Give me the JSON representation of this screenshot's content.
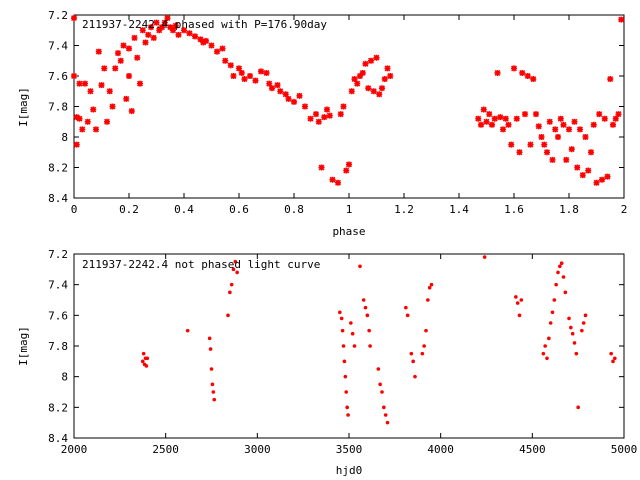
{
  "chart_data": [
    {
      "type": "scatter",
      "title": "211937-2242.4 phased with P=176.90day",
      "xlabel": "phase",
      "ylabel": "I[mag]",
      "xlim": [
        0,
        2
      ],
      "ylim": [
        7.2,
        8.4
      ],
      "y_inverted": true,
      "grid": false,
      "marker": "asterisk",
      "color": "#ff0000",
      "x_ticks": [
        "0",
        "0.2",
        "0.4",
        "0.6",
        "0.8",
        "1",
        "1.2",
        "1.4",
        "1.6",
        "1.8",
        "2"
      ],
      "y_ticks": [
        "7.2",
        "7.4",
        "7.6",
        "7.8",
        "8",
        "8.2",
        "8.4"
      ],
      "points": [
        [
          0.0,
          7.22
        ],
        [
          0.0,
          7.6
        ],
        [
          0.01,
          7.87
        ],
        [
          0.01,
          8.05
        ],
        [
          0.02,
          7.65
        ],
        [
          0.02,
          7.88
        ],
        [
          0.03,
          7.95
        ],
        [
          0.04,
          7.65
        ],
        [
          0.05,
          7.9
        ],
        [
          0.06,
          7.7
        ],
        [
          0.07,
          7.82
        ],
        [
          0.08,
          7.95
        ],
        [
          0.09,
          7.44
        ],
        [
          0.1,
          7.66
        ],
        [
          0.11,
          7.55
        ],
        [
          0.12,
          7.9
        ],
        [
          0.13,
          7.7
        ],
        [
          0.14,
          7.8
        ],
        [
          0.15,
          7.55
        ],
        [
          0.16,
          7.45
        ],
        [
          0.17,
          7.5
        ],
        [
          0.18,
          7.4
        ],
        [
          0.19,
          7.75
        ],
        [
          0.2,
          7.6
        ],
        [
          0.2,
          7.42
        ],
        [
          0.21,
          7.83
        ],
        [
          0.22,
          7.35
        ],
        [
          0.23,
          7.48
        ],
        [
          0.24,
          7.65
        ],
        [
          0.25,
          7.3
        ],
        [
          0.26,
          7.38
        ],
        [
          0.27,
          7.33
        ],
        [
          0.28,
          7.28
        ],
        [
          0.29,
          7.35
        ],
        [
          0.3,
          7.25
        ],
        [
          0.31,
          7.3
        ],
        [
          0.32,
          7.28
        ],
        [
          0.33,
          7.25
        ],
        [
          0.34,
          7.22
        ],
        [
          0.35,
          7.28
        ],
        [
          0.36,
          7.3
        ],
        [
          0.37,
          7.27
        ],
        [
          0.38,
          7.33
        ],
        [
          0.4,
          7.3
        ],
        [
          0.42,
          7.32
        ],
        [
          0.44,
          7.34
        ],
        [
          0.46,
          7.36
        ],
        [
          0.47,
          7.38
        ],
        [
          0.48,
          7.37
        ],
        [
          0.5,
          7.4
        ],
        [
          0.52,
          7.44
        ],
        [
          0.54,
          7.42
        ],
        [
          0.55,
          7.5
        ],
        [
          0.57,
          7.53
        ],
        [
          0.58,
          7.6
        ],
        [
          0.6,
          7.55
        ],
        [
          0.61,
          7.58
        ],
        [
          0.62,
          7.62
        ],
        [
          0.64,
          7.6
        ],
        [
          0.66,
          7.63
        ],
        [
          0.68,
          7.57
        ],
        [
          0.7,
          7.58
        ],
        [
          0.71,
          7.65
        ],
        [
          0.72,
          7.68
        ],
        [
          0.74,
          7.66
        ],
        [
          0.75,
          7.7
        ],
        [
          0.77,
          7.72
        ],
        [
          0.78,
          7.75
        ],
        [
          0.8,
          7.77
        ],
        [
          0.82,
          7.73
        ],
        [
          0.84,
          7.8
        ],
        [
          0.86,
          7.88
        ],
        [
          0.88,
          7.85
        ],
        [
          0.89,
          7.9
        ],
        [
          0.9,
          8.2
        ],
        [
          0.91,
          7.87
        ],
        [
          0.92,
          7.82
        ],
        [
          0.93,
          7.86
        ],
        [
          0.94,
          8.28
        ],
        [
          0.96,
          8.3
        ],
        [
          0.97,
          7.85
        ],
        [
          0.98,
          7.8
        ],
        [
          0.99,
          8.22
        ],
        [
          1.0,
          8.18
        ],
        [
          1.01,
          7.7
        ],
        [
          1.02,
          7.62
        ],
        [
          1.03,
          7.65
        ],
        [
          1.04,
          7.6
        ],
        [
          1.05,
          7.58
        ],
        [
          1.06,
          7.52
        ],
        [
          1.07,
          7.68
        ],
        [
          1.08,
          7.5
        ],
        [
          1.09,
          7.7
        ],
        [
          1.1,
          7.48
        ],
        [
          1.11,
          7.72
        ],
        [
          1.12,
          7.68
        ],
        [
          1.13,
          7.62
        ],
        [
          1.14,
          7.55
        ],
        [
          1.15,
          7.6
        ],
        [
          1.47,
          7.88
        ],
        [
          1.48,
          7.92
        ],
        [
          1.49,
          7.82
        ],
        [
          1.5,
          7.9
        ],
        [
          1.51,
          7.85
        ],
        [
          1.52,
          7.92
        ],
        [
          1.53,
          7.88
        ],
        [
          1.54,
          7.58
        ],
        [
          1.55,
          7.87
        ],
        [
          1.56,
          7.95
        ],
        [
          1.57,
          7.88
        ],
        [
          1.58,
          7.92
        ],
        [
          1.59,
          8.05
        ],
        [
          1.6,
          7.55
        ],
        [
          1.61,
          7.88
        ],
        [
          1.62,
          8.1
        ],
        [
          1.63,
          7.58
        ],
        [
          1.64,
          7.85
        ],
        [
          1.65,
          7.6
        ],
        [
          1.66,
          8.05
        ],
        [
          1.67,
          7.62
        ],
        [
          1.68,
          7.85
        ],
        [
          1.69,
          7.93
        ],
        [
          1.7,
          8.0
        ],
        [
          1.71,
          8.05
        ],
        [
          1.72,
          8.1
        ],
        [
          1.73,
          7.9
        ],
        [
          1.74,
          8.15
        ],
        [
          1.75,
          7.95
        ],
        [
          1.76,
          8.0
        ],
        [
          1.77,
          7.88
        ],
        [
          1.78,
          7.92
        ],
        [
          1.79,
          8.15
        ],
        [
          1.8,
          7.95
        ],
        [
          1.81,
          8.08
        ],
        [
          1.82,
          7.9
        ],
        [
          1.83,
          8.2
        ],
        [
          1.84,
          7.95
        ],
        [
          1.85,
          8.25
        ],
        [
          1.86,
          8.0
        ],
        [
          1.87,
          8.22
        ],
        [
          1.88,
          8.1
        ],
        [
          1.89,
          7.92
        ],
        [
          1.9,
          8.3
        ],
        [
          1.91,
          7.85
        ],
        [
          1.92,
          8.28
        ],
        [
          1.93,
          7.88
        ],
        [
          1.94,
          8.26
        ],
        [
          1.95,
          7.62
        ],
        [
          1.96,
          7.92
        ],
        [
          1.97,
          7.88
        ],
        [
          1.98,
          7.85
        ],
        [
          1.99,
          7.23
        ]
      ]
    },
    {
      "type": "scatter",
      "title": "211937-2242.4 not phased light curve",
      "xlabel": "hjd0",
      "ylabel": "I[mag]",
      "xlim": [
        2000,
        5000
      ],
      "ylim": [
        7.2,
        8.4
      ],
      "y_inverted": true,
      "grid": false,
      "marker": "dot",
      "color": "#ff0000",
      "x_ticks": [
        "2000",
        "2500",
        "3000",
        "3500",
        "4000",
        "4500",
        "5000"
      ],
      "y_ticks": [
        "7.2",
        "7.4",
        "7.6",
        "7.8",
        "8",
        "8.2",
        "8.4"
      ],
      "points": [
        [
          2375,
          7.9
        ],
        [
          2380,
          7.85
        ],
        [
          2385,
          7.92
        ],
        [
          2390,
          7.88
        ],
        [
          2395,
          7.93
        ],
        [
          2400,
          7.88
        ],
        [
          2620,
          7.7
        ],
        [
          2740,
          7.75
        ],
        [
          2745,
          7.82
        ],
        [
          2750,
          7.95
        ],
        [
          2755,
          8.05
        ],
        [
          2760,
          8.1
        ],
        [
          2765,
          8.15
        ],
        [
          2840,
          7.6
        ],
        [
          2850,
          7.45
        ],
        [
          2860,
          7.4
        ],
        [
          2870,
          7.3
        ],
        [
          2880,
          7.25
        ],
        [
          2890,
          7.32
        ],
        [
          3450,
          7.58
        ],
        [
          3460,
          7.62
        ],
        [
          3465,
          7.7
        ],
        [
          3470,
          7.8
        ],
        [
          3475,
          7.9
        ],
        [
          3480,
          8.0
        ],
        [
          3485,
          8.1
        ],
        [
          3490,
          8.2
        ],
        [
          3495,
          8.25
        ],
        [
          3510,
          7.65
        ],
        [
          3520,
          7.72
        ],
        [
          3530,
          7.8
        ],
        [
          3560,
          7.28
        ],
        [
          3580,
          7.5
        ],
        [
          3590,
          7.55
        ],
        [
          3600,
          7.6
        ],
        [
          3610,
          7.7
        ],
        [
          3615,
          7.8
        ],
        [
          3660,
          7.95
        ],
        [
          3670,
          8.05
        ],
        [
          3680,
          8.1
        ],
        [
          3690,
          8.2
        ],
        [
          3700,
          8.25
        ],
        [
          3710,
          8.3
        ],
        [
          3810,
          7.55
        ],
        [
          3820,
          7.6
        ],
        [
          3840,
          7.85
        ],
        [
          3850,
          7.9
        ],
        [
          3860,
          8.0
        ],
        [
          3900,
          7.85
        ],
        [
          3910,
          7.8
        ],
        [
          3920,
          7.7
        ],
        [
          3930,
          7.5
        ],
        [
          3940,
          7.42
        ],
        [
          3950,
          7.4
        ],
        [
          4240,
          7.22
        ],
        [
          4410,
          7.48
        ],
        [
          4420,
          7.52
        ],
        [
          4430,
          7.6
        ],
        [
          4440,
          7.5
        ],
        [
          4560,
          7.85
        ],
        [
          4570,
          7.8
        ],
        [
          4580,
          7.88
        ],
        [
          4590,
          7.75
        ],
        [
          4600,
          7.65
        ],
        [
          4610,
          7.58
        ],
        [
          4620,
          7.5
        ],
        [
          4630,
          7.4
        ],
        [
          4640,
          7.32
        ],
        [
          4650,
          7.28
        ],
        [
          4660,
          7.26
        ],
        [
          4670,
          7.35
        ],
        [
          4680,
          7.45
        ],
        [
          4700,
          7.62
        ],
        [
          4710,
          7.68
        ],
        [
          4720,
          7.72
        ],
        [
          4730,
          7.78
        ],
        [
          4740,
          7.85
        ],
        [
          4750,
          8.2
        ],
        [
          4770,
          7.7
        ],
        [
          4780,
          7.65
        ],
        [
          4790,
          7.6
        ],
        [
          4930,
          7.85
        ],
        [
          4940,
          7.9
        ],
        [
          4950,
          7.88
        ]
      ]
    }
  ]
}
